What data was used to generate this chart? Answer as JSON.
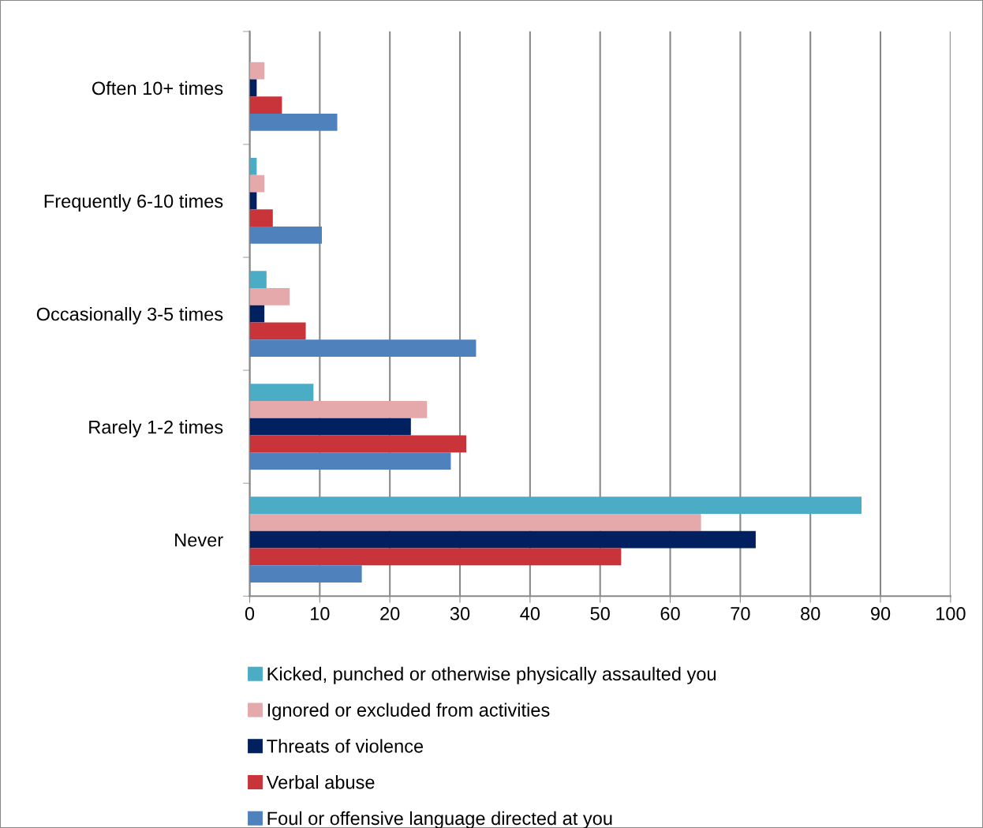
{
  "chart_data": {
    "type": "bar",
    "orientation": "horizontal",
    "categories": [
      "Often 10+ times",
      "Frequently 6-10 times",
      "Occasionally 3-5 times",
      "Rarely 1-2 times",
      "Never"
    ],
    "series": [
      {
        "name": "Kicked, punched or otherwise physically assaulted you",
        "color": "#4bacc6",
        "values": [
          0,
          1.0,
          2.4,
          9.1,
          87.3
        ]
      },
      {
        "name": "Ignored or excluded from activities",
        "color": "#e6a9ab",
        "values": [
          2.1,
          2.1,
          5.7,
          25.3,
          64.4
        ]
      },
      {
        "name": "Threats of violence",
        "color": "#002060",
        "values": [
          1.0,
          1.0,
          2.1,
          23.0,
          72.2
        ]
      },
      {
        "name": "Verbal abuse",
        "color": "#c9333a",
        "values": [
          4.6,
          3.3,
          8.0,
          30.9,
          53.0
        ]
      },
      {
        "name": "Foul or offensive language directed at you",
        "color": "#4f81bd",
        "values": [
          12.5,
          10.3,
          32.3,
          28.7,
          16.0
        ]
      }
    ],
    "xlim": [
      0,
      100
    ],
    "xticks": [
      0,
      10,
      20,
      30,
      40,
      50,
      60,
      70,
      80,
      90,
      100
    ],
    "grid": "x",
    "legend": "bottom"
  }
}
